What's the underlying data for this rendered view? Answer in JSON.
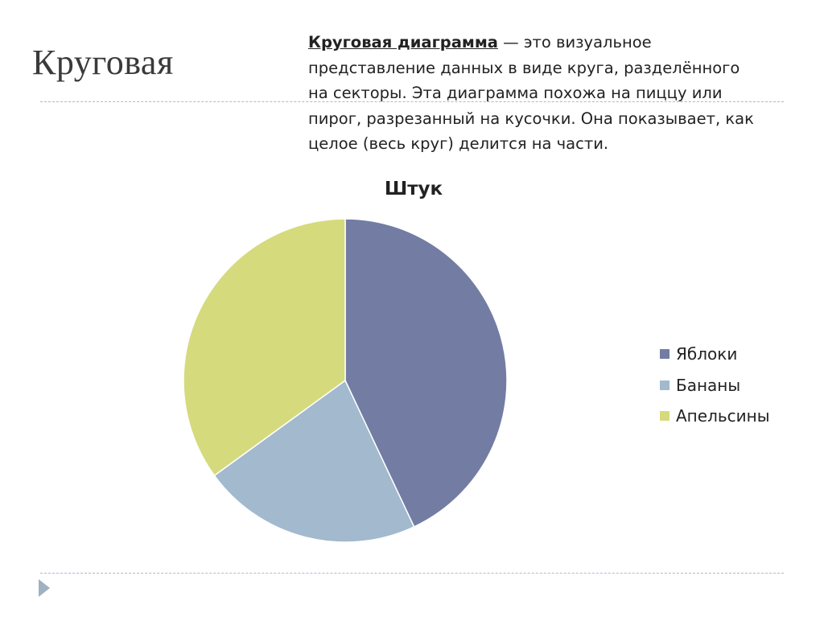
{
  "slide": {
    "title": "Круговая"
  },
  "description": {
    "term": "Круговая диаграмма",
    "line1_rest": " — это визуальное",
    "line2": "представление данных в виде круга, разделённого",
    "line3": "на секторы. Эта диаграмма похожа на пиццу или",
    "line4": "пирог, разрезанный на кусочки. Она показывает, как",
    "line5": "целое (весь круг) делится на части."
  },
  "chart_data": {
    "type": "pie",
    "title": "Штук",
    "categories": [
      "Яблоки",
      "Бананы",
      "Апельсины"
    ],
    "values": [
      43,
      22,
      35
    ],
    "colors": [
      "#737ca3",
      "#a2b9ce",
      "#d5da7c"
    ],
    "start_angle_deg": 0,
    "direction": "clockwise",
    "legend_position": "right"
  },
  "nav": {
    "next_icon": "triangle-right-icon"
  }
}
